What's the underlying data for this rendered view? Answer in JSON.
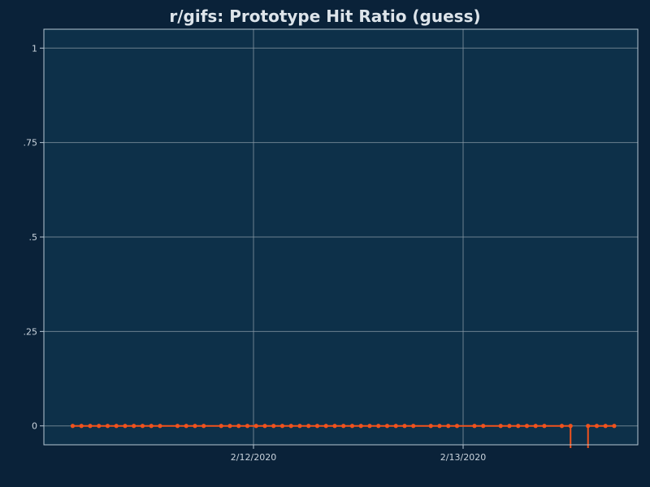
{
  "chart_data": {
    "type": "line",
    "title": "r/gifs: Prototype Hit Ratio (guess)",
    "xlabel": "",
    "ylabel": "",
    "ylim": [
      -0.05,
      1.05
    ],
    "y_ticks": [
      {
        "value": 0,
        "label": "0"
      },
      {
        "value": 0.25,
        "label": ".25"
      },
      {
        "value": 0.5,
        "label": ".5"
      },
      {
        "value": 0.75,
        "label": ".75"
      },
      {
        "value": 1,
        "label": "1"
      }
    ],
    "x_ticks": [
      {
        "value": 24,
        "label": "2/12/2020"
      },
      {
        "value": 48,
        "label": "2/13/2020"
      }
    ],
    "x_unit": "hours since 2/11/2020 00:00 (x values)",
    "xlim": [
      0,
      68
    ],
    "grid": true,
    "legend": "none",
    "colors": {
      "page_background": "#0a2239",
      "plot_background": "#0d3049",
      "grid": "#8a9aa6",
      "plot_border": "#b7c7d3",
      "series": "#f0521d",
      "text": "#dde4ea"
    },
    "series": [
      {
        "name": "",
        "color": "#f0521d",
        "x": [
          3.3,
          4.3,
          5.3,
          6.3,
          7.3,
          8.3,
          9.3,
          10.3,
          11.3,
          12.3,
          13.3,
          15.3,
          16.3,
          17.3,
          18.3,
          20.3,
          21.3,
          22.3,
          23.3,
          24.3,
          25.3,
          26.3,
          27.3,
          28.3,
          29.3,
          30.3,
          31.3,
          32.3,
          33.3,
          34.3,
          35.3,
          36.3,
          37.3,
          38.3,
          39.3,
          40.3,
          41.3,
          42.3,
          44.3,
          45.3,
          46.3,
          47.3,
          49.3,
          50.3,
          52.3,
          53.3,
          54.3,
          55.3,
          56.3,
          57.3,
          59.3,
          60.3,
          62.3,
          63.3,
          64.3,
          65.3
        ],
        "values": [
          0,
          0,
          0,
          0,
          0,
          0,
          0,
          0,
          0,
          0,
          0,
          0,
          0,
          0,
          0,
          0,
          0,
          0,
          0,
          0,
          0,
          0,
          0,
          0,
          0,
          0,
          0,
          0,
          0,
          0,
          0,
          0,
          0,
          0,
          0,
          0,
          0,
          0,
          0,
          0,
          0,
          0,
          0,
          0,
          0,
          0,
          0,
          0,
          0,
          0,
          0,
          0,
          0,
          0,
          0,
          0
        ]
      }
    ],
    "line_dips_below_axis_between": [
      [
        60.3,
        62.3
      ]
    ]
  }
}
